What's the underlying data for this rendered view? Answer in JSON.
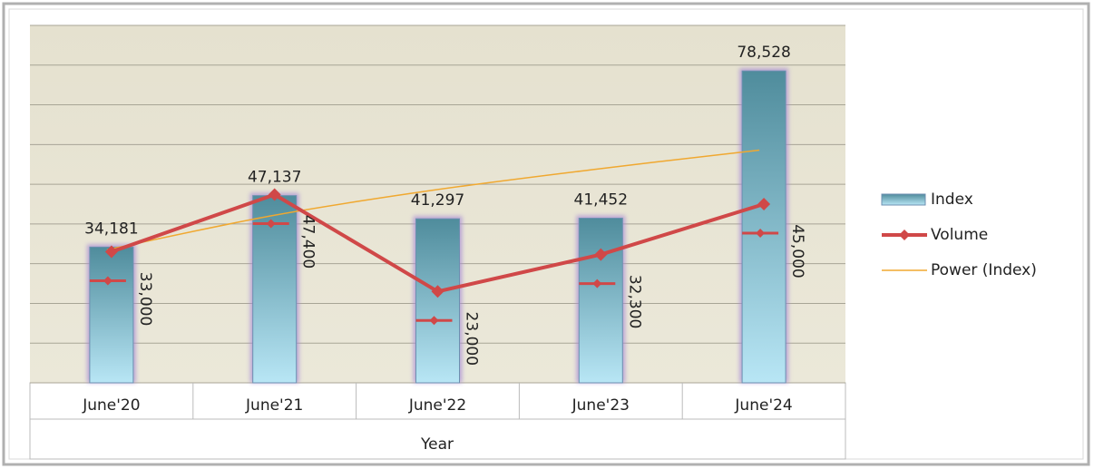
{
  "chart_data": {
    "type": "bar",
    "x_label": "Year",
    "categories": [
      "June'20",
      "June'21",
      "June'22",
      "June'23",
      "June'24"
    ],
    "series": [
      {
        "name": "Index",
        "type": "bar",
        "color": "#5ea6bb",
        "values": [
          34181,
          47137,
          41297,
          41452,
          78528
        ],
        "value_labels": [
          "34,181",
          "47,137",
          "41,297",
          "41,452",
          "78,528"
        ]
      },
      {
        "name": "Volume",
        "type": "line",
        "color": "#d04848",
        "values": [
          33000,
          47400,
          23000,
          32300,
          45000
        ],
        "value_labels": [
          "33,000",
          "47,400",
          "23,000",
          "32,300",
          "45,000"
        ]
      },
      {
        "name": "Power (Index)",
        "type": "trend",
        "color": "#f0a830",
        "values": [
          33500,
          42000,
          48500,
          53800,
          58600
        ]
      }
    ],
    "ylim": [
      0,
      90000
    ],
    "yticks": [
      0,
      10000,
      20000,
      30000,
      40000,
      50000,
      60000,
      70000,
      80000,
      90000
    ],
    "grid": true,
    "legend": "right"
  }
}
